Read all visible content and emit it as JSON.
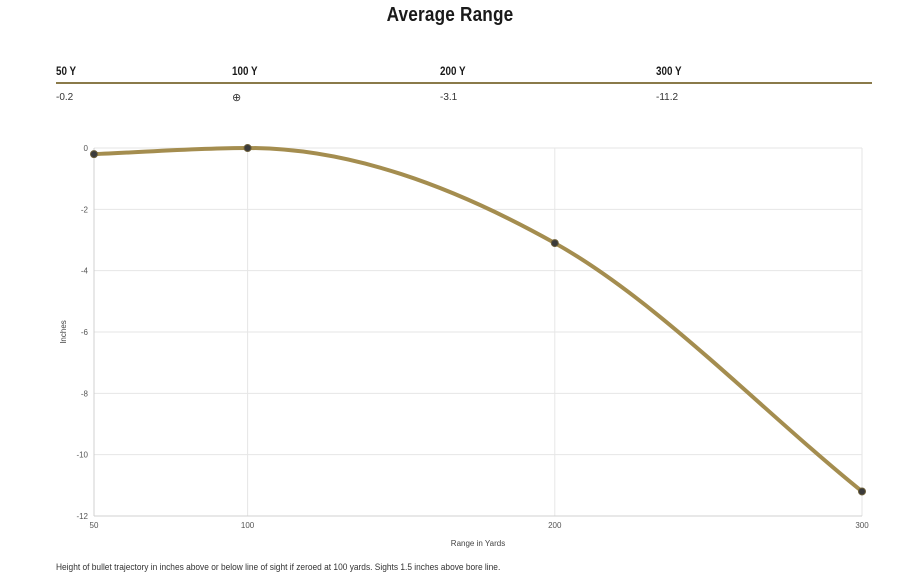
{
  "title": "Average Range",
  "range_table": {
    "headers": [
      "50 Y",
      "100 Y",
      "200 Y",
      "300 Y"
    ],
    "values": [
      "-0.2",
      "⊕",
      "-3.1",
      "-11.2"
    ]
  },
  "colors": {
    "line": "#a48d4f",
    "points": "#3a3a3a",
    "table_rule": "#8a7a4a"
  },
  "icons": {
    "zero_marker": "crosshair-icon"
  },
  "chart_data": {
    "type": "line",
    "title": "",
    "xlabel": "Range in Yards",
    "ylabel": "Inches",
    "x": [
      50,
      100,
      200,
      300
    ],
    "series": [
      {
        "values": [
          -0.2,
          0,
          -3.1,
          -11.2
        ]
      }
    ],
    "xlim": [
      50,
      300
    ],
    "ylim": [
      -12,
      0
    ],
    "x_ticks": [
      50,
      100,
      200,
      300
    ],
    "y_ticks": [
      0,
      -2,
      -4,
      -6,
      -8,
      -10,
      -12
    ],
    "grid": true,
    "legend": "none"
  },
  "footnote": "Height of bullet trajectory in inches above or below line of sight if zeroed at 100 yards. Sights 1.5 inches above bore line."
}
